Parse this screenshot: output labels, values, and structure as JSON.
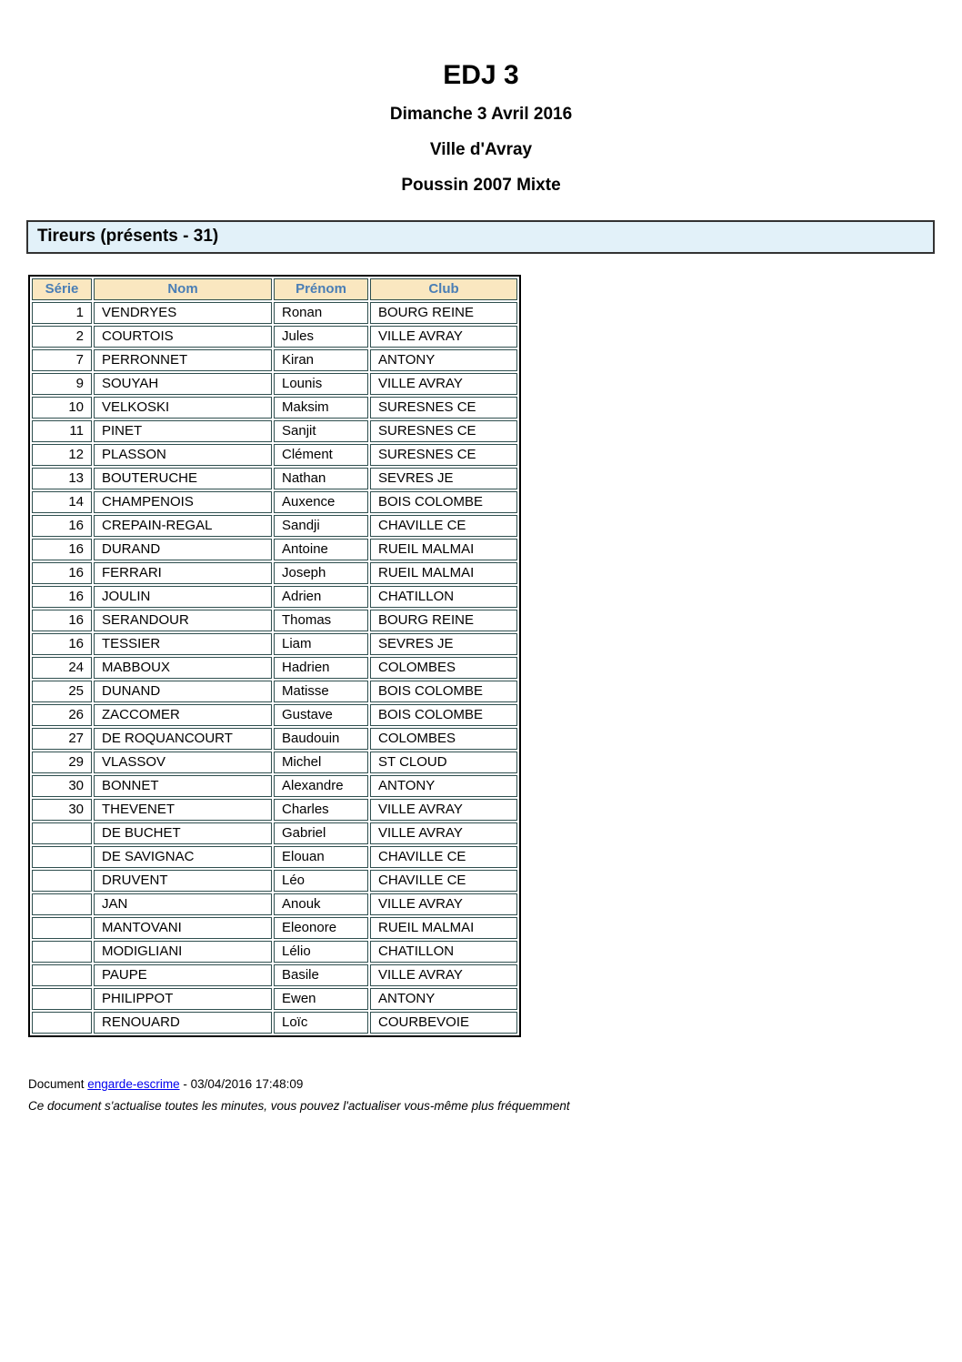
{
  "page": {
    "title": "EDJ 3",
    "subtitle_date": "Dimanche 3 Avril 2016",
    "subtitle_location": "Ville d'Avray",
    "subtitle_category": "Poussin 2007 Mixte"
  },
  "section": {
    "banner": "Tireurs (présents - 31)"
  },
  "table": {
    "columns": [
      "Série",
      "Nom",
      "Prénom",
      "Club"
    ],
    "rows": [
      {
        "serie": "1",
        "nom": "VENDRYES",
        "prenom": "Ronan",
        "club": "BOURG REINE"
      },
      {
        "serie": "2",
        "nom": "COURTOIS",
        "prenom": "Jules",
        "club": "VILLE AVRAY"
      },
      {
        "serie": "7",
        "nom": "PERRONNET",
        "prenom": "Kiran",
        "club": "ANTONY"
      },
      {
        "serie": "9",
        "nom": "SOUYAH",
        "prenom": "Lounis",
        "club": "VILLE AVRAY"
      },
      {
        "serie": "10",
        "nom": "VELKOSKI",
        "prenom": "Maksim",
        "club": "SURESNES CE"
      },
      {
        "serie": "11",
        "nom": "PINET",
        "prenom": "Sanjit",
        "club": "SURESNES CE"
      },
      {
        "serie": "12",
        "nom": "PLASSON",
        "prenom": "Clément",
        "club": "SURESNES CE"
      },
      {
        "serie": "13",
        "nom": "BOUTERUCHE",
        "prenom": "Nathan",
        "club": "SEVRES JE"
      },
      {
        "serie": "14",
        "nom": "CHAMPENOIS",
        "prenom": "Auxence",
        "club": "BOIS COLOMBE"
      },
      {
        "serie": "16",
        "nom": "CREPAIN-REGAL",
        "prenom": "Sandji",
        "club": "CHAVILLE CE"
      },
      {
        "serie": "16",
        "nom": "DURAND",
        "prenom": "Antoine",
        "club": "RUEIL MALMAI"
      },
      {
        "serie": "16",
        "nom": "FERRARI",
        "prenom": "Joseph",
        "club": "RUEIL MALMAI"
      },
      {
        "serie": "16",
        "nom": "JOULIN",
        "prenom": "Adrien",
        "club": "CHATILLON"
      },
      {
        "serie": "16",
        "nom": "SERANDOUR",
        "prenom": "Thomas",
        "club": "BOURG REINE"
      },
      {
        "serie": "16",
        "nom": "TESSIER",
        "prenom": "Liam",
        "club": "SEVRES JE"
      },
      {
        "serie": "24",
        "nom": "MABBOUX",
        "prenom": "Hadrien",
        "club": "COLOMBES"
      },
      {
        "serie": "25",
        "nom": "DUNAND",
        "prenom": "Matisse",
        "club": "BOIS COLOMBE"
      },
      {
        "serie": "26",
        "nom": "ZACCOMER",
        "prenom": "Gustave",
        "club": "BOIS COLOMBE"
      },
      {
        "serie": "27",
        "nom": "DE ROQUANCOURT",
        "prenom": "Baudouin",
        "club": "COLOMBES"
      },
      {
        "serie": "29",
        "nom": "VLASSOV",
        "prenom": "Michel",
        "club": "ST CLOUD"
      },
      {
        "serie": "30",
        "nom": "BONNET",
        "prenom": "Alexandre",
        "club": "ANTONY"
      },
      {
        "serie": "30",
        "nom": "THEVENET",
        "prenom": "Charles",
        "club": "VILLE AVRAY"
      },
      {
        "serie": "",
        "nom": "DE BUCHET",
        "prenom": "Gabriel",
        "club": "VILLE AVRAY"
      },
      {
        "serie": "",
        "nom": "DE SAVIGNAC",
        "prenom": "Elouan",
        "club": "CHAVILLE CE"
      },
      {
        "serie": "",
        "nom": "DRUVENT",
        "prenom": "Léo",
        "club": "CHAVILLE CE"
      },
      {
        "serie": "",
        "nom": "JAN",
        "prenom": "Anouk",
        "club": "VILLE AVRAY"
      },
      {
        "serie": "",
        "nom": "MANTOVANI",
        "prenom": "Eleonore",
        "club": "RUEIL MALMAI"
      },
      {
        "serie": "",
        "nom": "MODIGLIANI",
        "prenom": "Lélio",
        "club": "CHATILLON"
      },
      {
        "serie": "",
        "nom": "PAUPE",
        "prenom": "Basile",
        "club": "VILLE AVRAY"
      },
      {
        "serie": "",
        "nom": "PHILIPPOT",
        "prenom": "Ewen",
        "club": "ANTONY"
      },
      {
        "serie": "",
        "nom": "RENOUARD",
        "prenom": "Loïc",
        "club": "COURBEVOIE"
      }
    ]
  },
  "footer": {
    "prefix": "Document ",
    "link": "engarde-escrime",
    "suffix": " - 03/04/2016 17:48:09",
    "note": "Ce document s'actualise toutes les minutes, vous pouvez l'actualiser vous-même plus fréquemment"
  },
  "colors": {
    "banner_bg": "#e2f1f9",
    "banner_border": "#333333",
    "table_outer": "#000000",
    "cell_border": "#2f4f4f",
    "header_bg": "#fae7c0",
    "header_text": "#4a7eb5",
    "link": "#0000ee",
    "text": "#000000"
  }
}
